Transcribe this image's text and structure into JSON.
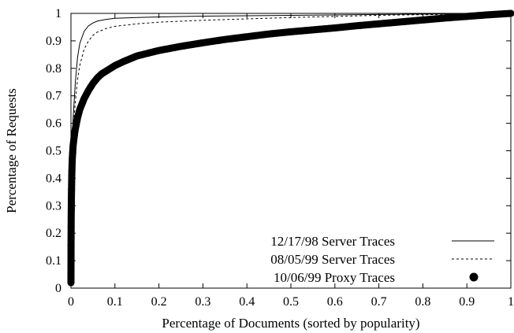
{
  "chart_data": {
    "type": "line",
    "title": "",
    "xlabel": "Percentage of Documents (sorted by popularity)",
    "ylabel": "Percentage of Requests",
    "xlim": [
      0,
      1
    ],
    "ylim": [
      0,
      1
    ],
    "x_ticks": [
      "0",
      "0.1",
      "0.2",
      "0.3",
      "0.4",
      "0.5",
      "0.6",
      "0.7",
      "0.8",
      "0.9",
      "1"
    ],
    "y_ticks": [
      "0",
      "0.1",
      "0.2",
      "0.3",
      "0.4",
      "0.5",
      "0.6",
      "0.7",
      "0.8",
      "0.9",
      "1"
    ],
    "grid": false,
    "legend_position": "bottom-right",
    "series": [
      {
        "name": "12/17/98 Server Traces",
        "style": "solid",
        "x": [
          0,
          0.0005,
          0.002,
          0.005,
          0.01,
          0.015,
          0.02,
          0.03,
          0.04,
          0.05,
          0.06,
          0.08,
          0.1,
          0.15,
          0.2,
          0.3,
          0.5,
          0.7,
          1.0
        ],
        "y": [
          0.02,
          0.4,
          0.52,
          0.62,
          0.75,
          0.84,
          0.89,
          0.935,
          0.955,
          0.965,
          0.972,
          0.978,
          0.982,
          0.985,
          0.987,
          0.99,
          0.993,
          0.996,
          1.0
        ]
      },
      {
        "name": "08/05/99 Server Traces",
        "style": "dashed",
        "x": [
          0,
          0.0005,
          0.002,
          0.005,
          0.01,
          0.015,
          0.02,
          0.03,
          0.04,
          0.05,
          0.06,
          0.08,
          0.1,
          0.15,
          0.2,
          0.3,
          0.5,
          0.7,
          1.0
        ],
        "y": [
          0.02,
          0.38,
          0.5,
          0.58,
          0.68,
          0.76,
          0.81,
          0.87,
          0.9,
          0.92,
          0.932,
          0.945,
          0.953,
          0.962,
          0.968,
          0.975,
          0.985,
          0.993,
          1.0
        ]
      },
      {
        "name": "10/06/99 Proxy Traces",
        "style": "dots",
        "x": [
          0,
          0.0002,
          0.0005,
          0.001,
          0.002,
          0.003,
          0.005,
          0.008,
          0.01,
          0.015,
          0.02,
          0.03,
          0.04,
          0.05,
          0.06,
          0.07,
          0.08,
          0.1,
          0.12,
          0.15,
          0.2,
          0.25,
          0.3,
          0.35,
          0.4,
          0.45,
          0.5,
          0.55,
          0.6,
          0.65,
          0.7,
          0.75,
          0.8,
          0.85,
          0.9,
          0.95,
          1.0
        ],
        "y": [
          0.02,
          0.15,
          0.25,
          0.33,
          0.42,
          0.47,
          0.52,
          0.56,
          0.58,
          0.62,
          0.65,
          0.69,
          0.72,
          0.745,
          0.765,
          0.78,
          0.79,
          0.81,
          0.825,
          0.845,
          0.865,
          0.88,
          0.893,
          0.905,
          0.915,
          0.925,
          0.933,
          0.94,
          0.947,
          0.955,
          0.962,
          0.969,
          0.976,
          0.983,
          0.989,
          0.995,
          1.0
        ]
      }
    ]
  }
}
